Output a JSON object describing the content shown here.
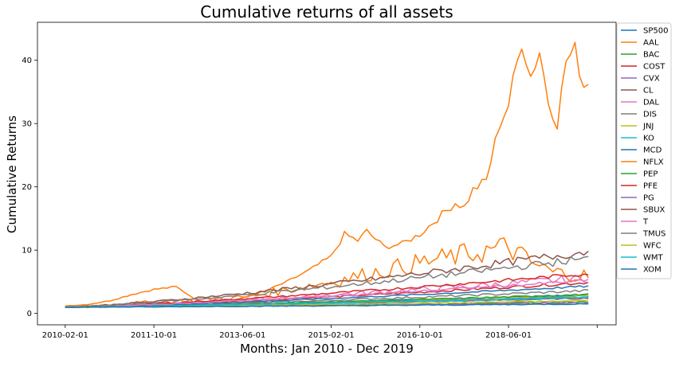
{
  "chart_data": {
    "type": "line",
    "title": "Cumulative returns of all assets",
    "xlabel": "Months: Jan 2010 - Dec 2019",
    "ylabel": "Cumulative Returns",
    "x_start": "2010-02-01",
    "x_end": "2019-12-01",
    "x_ticks": [
      "2010-02-01",
      "2011-10-01",
      "2013-06-01",
      "2015-02-01",
      "2016-10-01",
      "2018-06-01",
      ""
    ],
    "ylim": [
      -1.8,
      46
    ],
    "y_ticks": [
      0,
      10,
      20,
      30,
      40
    ],
    "grid": false,
    "legend_position": "right-outside-top",
    "series": [
      {
        "name": "SP500",
        "color": "#1f77b4",
        "end": 2.95,
        "wiggle": 0.1
      },
      {
        "name": "AAL",
        "color": "#ff7f0e",
        "end": 36.2,
        "wiggle": 0.3
      },
      {
        "name": "BAC",
        "color": "#2ca02c",
        "end": 1.8,
        "wiggle": 0.15
      },
      {
        "name": "COST",
        "color": "#d62728",
        "end": 4.9,
        "wiggle": 0.1
      },
      {
        "name": "CVX",
        "color": "#9467bd",
        "end": 1.65,
        "wiggle": 0.12
      },
      {
        "name": "CL",
        "color": "#8c564b",
        "end": 2.4,
        "wiggle": 0.08
      },
      {
        "name": "DAL",
        "color": "#e377c2",
        "end": 5.6,
        "wiggle": 0.25
      },
      {
        "name": "DIS",
        "color": "#7f7f7f",
        "end": 3.6,
        "wiggle": 0.12
      },
      {
        "name": "JNJ",
        "color": "#bcbd22",
        "end": 2.8,
        "wiggle": 0.08
      },
      {
        "name": "KO",
        "color": "#17becf",
        "end": 2.5,
        "wiggle": 0.08
      },
      {
        "name": "MCD",
        "color": "#1f77b4",
        "end": 4.3,
        "wiggle": 0.08
      },
      {
        "name": "NFLX",
        "color": "#ff7f0e",
        "end": 5.9,
        "wiggle": 0.4
      },
      {
        "name": "PEP",
        "color": "#2ca02c",
        "end": 3.0,
        "wiggle": 0.08
      },
      {
        "name": "PFE",
        "color": "#d62728",
        "end": 6.3,
        "wiggle": 0.1
      },
      {
        "name": "PG",
        "color": "#9467bd",
        "end": 2.6,
        "wiggle": 0.08
      },
      {
        "name": "SBUX",
        "color": "#8c564b",
        "end": 9.8,
        "wiggle": 0.15
      },
      {
        "name": "T",
        "color": "#e377c2",
        "end": 5.2,
        "wiggle": 0.1
      },
      {
        "name": "TMUS",
        "color": "#7f7f7f",
        "end": 8.7,
        "wiggle": 0.15
      },
      {
        "name": "WFC",
        "color": "#bcbd22",
        "end": 2.0,
        "wiggle": 0.12
      },
      {
        "name": "WMT",
        "color": "#17becf",
        "end": 2.6,
        "wiggle": 0.08
      },
      {
        "name": "XOM",
        "color": "#1f77b4",
        "end": 1.5,
        "wiggle": 0.1
      }
    ]
  }
}
